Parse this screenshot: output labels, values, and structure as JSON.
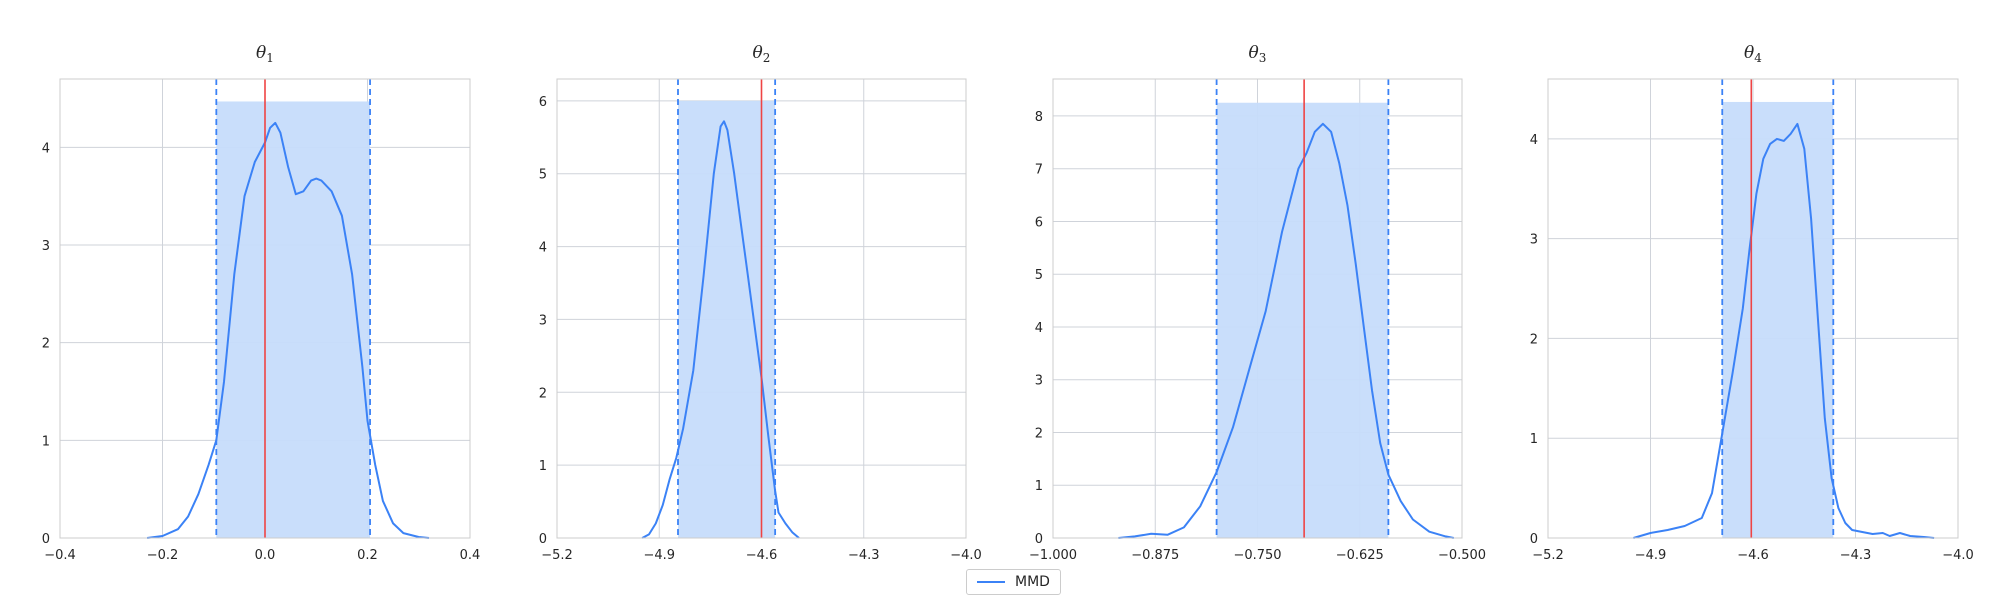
{
  "colors": {
    "kde": "#3b82f6",
    "fill": "#c6dcfb",
    "interval": "#3b82f6",
    "truth": "#ef4444",
    "grid": "#cfd3da",
    "frame": "#cccccc",
    "text": "#262626"
  },
  "legend": {
    "label": "MMD",
    "placement": "bottom-center"
  },
  "chart_data": [
    {
      "type": "area",
      "title": "θ",
      "title_sub": "1",
      "grid": true,
      "xlim": [
        -0.4,
        0.4
      ],
      "ylim": [
        0,
        4.7
      ],
      "xticks": [
        -0.4,
        -0.2,
        0.0,
        0.2,
        0.4
      ],
      "xtick_labels": [
        "−0.4",
        "−0.2",
        "0.0",
        "0.2",
        "0.4"
      ],
      "yticks": [
        0,
        1,
        2,
        3,
        4
      ],
      "ytick_labels": [
        "0",
        "1",
        "2",
        "3",
        "4"
      ],
      "interval": [
        -0.095,
        0.205
      ],
      "interval_height": 4.47,
      "true_value": 0.0,
      "series": [
        {
          "name": "MMD",
          "x": [
            -0.23,
            -0.2,
            -0.17,
            -0.15,
            -0.13,
            -0.11,
            -0.095,
            -0.08,
            -0.06,
            -0.04,
            -0.02,
            0.0,
            0.01,
            0.02,
            0.03,
            0.045,
            0.06,
            0.075,
            0.09,
            0.1,
            0.11,
            0.13,
            0.15,
            0.17,
            0.19,
            0.2,
            0.215,
            0.23,
            0.25,
            0.27,
            0.3,
            0.32
          ],
          "y": [
            0.0,
            0.02,
            0.09,
            0.22,
            0.45,
            0.75,
            1.0,
            1.6,
            2.7,
            3.5,
            3.85,
            4.05,
            4.2,
            4.25,
            4.15,
            3.8,
            3.52,
            3.55,
            3.66,
            3.68,
            3.66,
            3.55,
            3.3,
            2.7,
            1.75,
            1.2,
            0.75,
            0.38,
            0.15,
            0.05,
            0.01,
            0.0
          ]
        }
      ]
    },
    {
      "type": "area",
      "title": "θ",
      "title_sub": "2",
      "grid": true,
      "xlim": [
        -5.2,
        -4.0
      ],
      "ylim": [
        0,
        6.3
      ],
      "xticks": [
        -5.2,
        -4.9,
        -4.6,
        -4.3,
        -4.0
      ],
      "xtick_labels": [
        "−5.2",
        "−4.9",
        "−4.6",
        "−4.3",
        "−4.0"
      ],
      "yticks": [
        0,
        1,
        2,
        3,
        4,
        5,
        6
      ],
      "ytick_labels": [
        "0",
        "1",
        "2",
        "3",
        "4",
        "5",
        "6"
      ],
      "interval": [
        -4.845,
        -4.56
      ],
      "interval_height": 6.0,
      "true_value": -4.6,
      "series": [
        {
          "name": "MMD",
          "x": [
            -4.95,
            -4.93,
            -4.91,
            -4.89,
            -4.87,
            -4.85,
            -4.83,
            -4.8,
            -4.77,
            -4.74,
            -4.72,
            -4.71,
            -4.7,
            -4.69,
            -4.68,
            -4.66,
            -4.64,
            -4.62,
            -4.6,
            -4.58,
            -4.56,
            -4.55,
            -4.53,
            -4.51,
            -4.49
          ],
          "y": [
            0.0,
            0.05,
            0.2,
            0.45,
            0.8,
            1.1,
            1.5,
            2.3,
            3.6,
            5.0,
            5.65,
            5.72,
            5.6,
            5.3,
            5.0,
            4.3,
            3.6,
            2.9,
            2.2,
            1.4,
            0.65,
            0.35,
            0.2,
            0.08,
            0.0
          ]
        }
      ]
    },
    {
      "type": "area",
      "title": "θ",
      "title_sub": "3",
      "grid": true,
      "xlim": [
        -1.0,
        -0.5
      ],
      "ylim": [
        0,
        8.7
      ],
      "xticks": [
        -1.0,
        -0.875,
        -0.75,
        -0.625,
        -0.5
      ],
      "xtick_labels": [
        "−1.000",
        "−0.875",
        "−0.750",
        "−0.625",
        "−0.500"
      ],
      "yticks": [
        0,
        1,
        2,
        3,
        4,
        5,
        6,
        7,
        8
      ],
      "ytick_labels": [
        "0",
        "1",
        "2",
        "3",
        "4",
        "5",
        "6",
        "7",
        "8"
      ],
      "interval": [
        -0.8,
        -0.59
      ],
      "interval_height": 8.25,
      "true_value": -0.693,
      "series": [
        {
          "name": "MMD",
          "x": [
            -0.92,
            -0.9,
            -0.88,
            -0.86,
            -0.84,
            -0.82,
            -0.8,
            -0.78,
            -0.76,
            -0.74,
            -0.72,
            -0.7,
            -0.69,
            -0.68,
            -0.67,
            -0.66,
            -0.65,
            -0.64,
            -0.63,
            -0.62,
            -0.61,
            -0.6,
            -0.59,
            -0.575,
            -0.56,
            -0.54,
            -0.52,
            -0.51
          ],
          "y": [
            0.0,
            0.03,
            0.08,
            0.06,
            0.2,
            0.6,
            1.25,
            2.1,
            3.2,
            4.3,
            5.8,
            7.0,
            7.3,
            7.7,
            7.85,
            7.7,
            7.1,
            6.3,
            5.2,
            4.0,
            2.8,
            1.8,
            1.2,
            0.7,
            0.35,
            0.12,
            0.03,
            0.0
          ]
        }
      ]
    },
    {
      "type": "area",
      "title": "θ",
      "title_sub": "4",
      "grid": true,
      "xlim": [
        -5.2,
        -4.0
      ],
      "ylim": [
        0,
        4.6
      ],
      "xticks": [
        -5.2,
        -4.9,
        -4.6,
        -4.3,
        -4.0
      ],
      "xtick_labels": [
        "−5.2",
        "−4.9",
        "−4.6",
        "−4.3",
        "−4.0"
      ],
      "yticks": [
        0,
        1,
        2,
        3,
        4
      ],
      "ytick_labels": [
        "0",
        "1",
        "2",
        "3",
        "4"
      ],
      "interval": [
        -4.69,
        -4.365
      ],
      "interval_height": 4.37,
      "true_value": -4.605,
      "series": [
        {
          "name": "MMD",
          "x": [
            -4.95,
            -4.9,
            -4.85,
            -4.8,
            -4.75,
            -4.72,
            -4.69,
            -4.66,
            -4.63,
            -4.61,
            -4.59,
            -4.57,
            -4.55,
            -4.53,
            -4.51,
            -4.49,
            -4.47,
            -4.45,
            -4.43,
            -4.41,
            -4.39,
            -4.37,
            -4.35,
            -4.33,
            -4.31,
            -4.28,
            -4.25,
            -4.22,
            -4.2,
            -4.17,
            -4.14,
            -4.1,
            -4.07
          ],
          "y": [
            0.0,
            0.05,
            0.08,
            0.12,
            0.2,
            0.45,
            1.05,
            1.65,
            2.3,
            2.9,
            3.45,
            3.8,
            3.95,
            4.0,
            3.98,
            4.05,
            4.15,
            3.9,
            3.2,
            2.2,
            1.2,
            0.6,
            0.3,
            0.15,
            0.08,
            0.06,
            0.04,
            0.05,
            0.02,
            0.05,
            0.02,
            0.01,
            0.0
          ]
        }
      ]
    }
  ]
}
